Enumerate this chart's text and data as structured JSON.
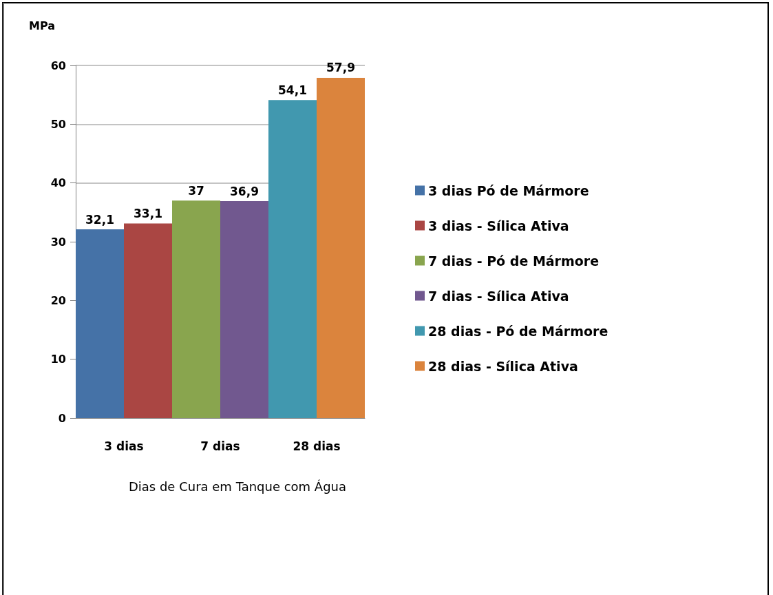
{
  "chart_data": {
    "type": "bar",
    "categories": [
      "3 dias",
      "7 dias",
      "28 dias"
    ],
    "series": [
      {
        "name": "3 dias Pó de Mármore",
        "color": "#4572a7",
        "values": [
          32.1,
          null,
          null
        ],
        "value_labels": [
          "32,1",
          null,
          null
        ]
      },
      {
        "name": "3 dias - Sílica Ativa",
        "color": "#aa4643",
        "values": [
          33.1,
          null,
          null
        ],
        "value_labels": [
          "33,1",
          null,
          null
        ]
      },
      {
        "name": "7 dias - Pó de Mármore",
        "color": "#89a54e",
        "values": [
          null,
          37,
          null
        ],
        "value_labels": [
          null,
          "37",
          null
        ]
      },
      {
        "name": "7 dias - Sílica Ativa",
        "color": "#71588f",
        "values": [
          null,
          36.9,
          null
        ],
        "value_labels": [
          null,
          "36,9",
          null
        ]
      },
      {
        "name": "28 dias - Pó de Mármore",
        "color": "#4198af",
        "values": [
          null,
          null,
          54.1
        ],
        "value_labels": [
          null,
          null,
          "54,1"
        ]
      },
      {
        "name": "28 dias - Sílica Ativa",
        "color": "#db843d",
        "values": [
          null,
          null,
          57.9
        ],
        "value_labels": [
          null,
          null,
          "57,9"
        ]
      }
    ],
    "ylabel": "MPa",
    "xlabel": "Dias de Cura em Tanque com Água",
    "ylim": [
      0,
      60
    ],
    "yticks": [
      0,
      10,
      20,
      30,
      40,
      50,
      60
    ],
    "grid": "y",
    "legend": "right"
  }
}
